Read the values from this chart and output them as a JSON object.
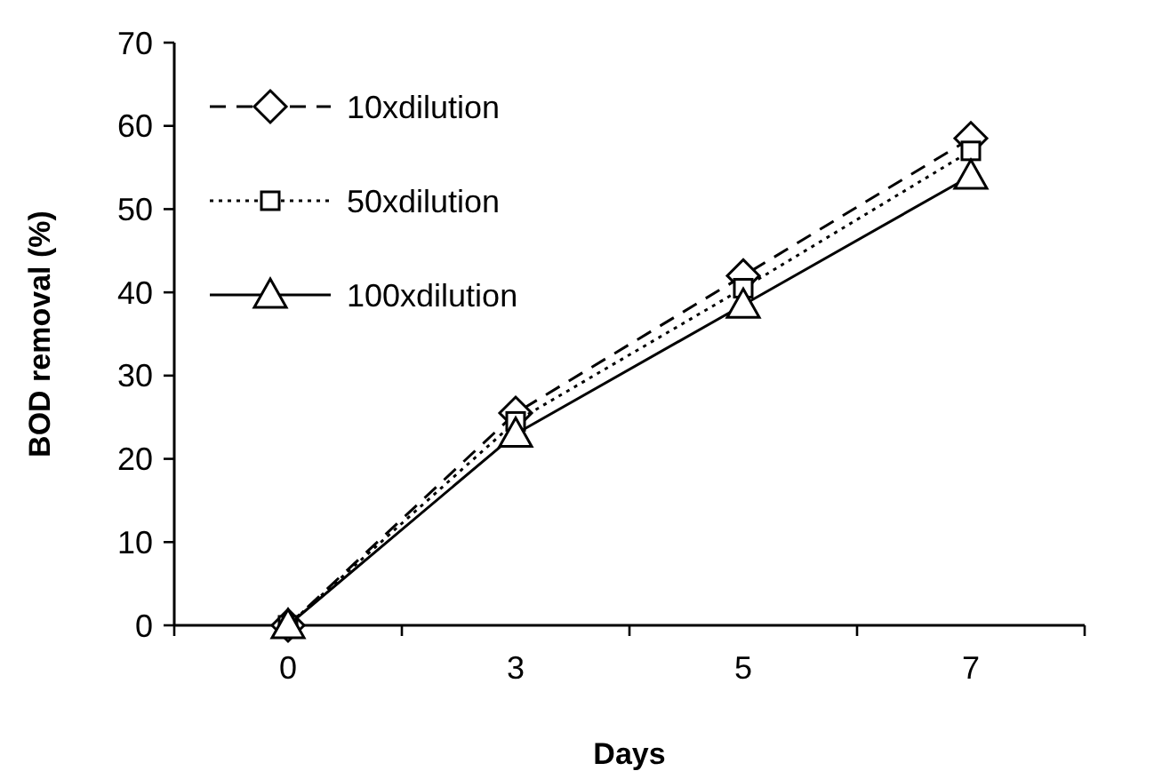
{
  "chart_data": {
    "type": "line",
    "xlabel": "Days",
    "ylabel": "BOD removal (%)",
    "categories": [
      "0",
      "3",
      "5",
      "7"
    ],
    "series": [
      {
        "name": "10xdilution",
        "color": "#000000",
        "values": [
          0,
          25.5,
          42,
          58.5
        ],
        "marker": "diamond",
        "line_style": "dashed"
      },
      {
        "name": "50xdilution",
        "color": "#000000",
        "values": [
          0,
          24.5,
          40.5,
          57
        ],
        "marker": "square",
        "line_style": "dotted"
      },
      {
        "name": "100xdilution",
        "color": "#000000",
        "values": [
          0,
          23,
          38.5,
          54
        ],
        "marker": "triangle",
        "line_style": "solid"
      }
    ],
    "ylim": [
      0,
      70
    ],
    "yticks": [
      0,
      10,
      20,
      30,
      40,
      50,
      60,
      70
    ],
    "grid": false,
    "legend": "top left"
  }
}
